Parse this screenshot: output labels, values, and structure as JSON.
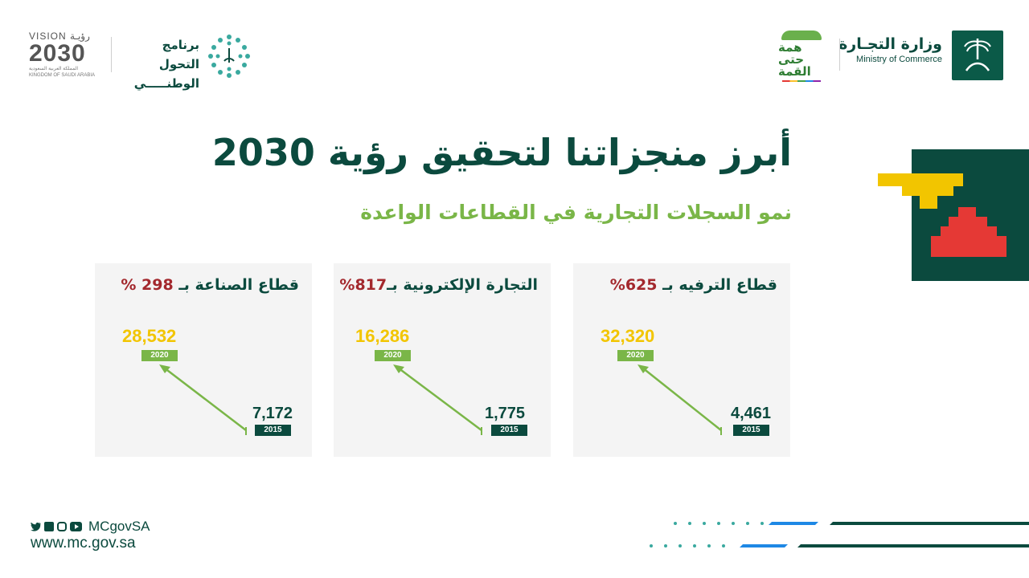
{
  "header": {
    "ministry_ar": "وزارة التجـارة",
    "ministry_en": "Ministry of Commerce",
    "summit_ar": "همة حتى القمة",
    "ntp_line1": "برنامج التحول",
    "ntp_line2": "الوطنـــــي",
    "vision_top": "VISION رؤيـة",
    "vision_year": "2030",
    "vision_sub_ar": "المملكة العربية السعودية",
    "vision_sub_en": "KINGDOM OF SAUDI ARABIA"
  },
  "main": {
    "title": "أبرز منجزاتنا لتحقيق رؤية 2030",
    "subtitle": "نمو السجلات التجارية في القطاعات الواعدة"
  },
  "cards": [
    {
      "label": "قطاع الترفيه بـ",
      "pct": "625%",
      "value_2020": "32,320",
      "year_2020": "2020",
      "value_2015": "4,461",
      "year_2015": "2015"
    },
    {
      "label": "التجارة الإلكترونية بـ",
      "pct": "817%",
      "value_2020": "16,286",
      "year_2020": "2020",
      "value_2015": "1,775",
      "year_2015": "2015"
    },
    {
      "label": "قطاع الصناعة بـ",
      "pct": "298 %",
      "value_2020": "28,532",
      "year_2020": "2020",
      "value_2015": "7,172",
      "year_2015": "2015"
    }
  ],
  "footer": {
    "handle": "MCgovSA",
    "url": "www.mc.gov.sa",
    "icons": [
      "twitter-icon",
      "facebook-icon",
      "instagram-icon",
      "youtube-icon"
    ]
  },
  "colors": {
    "primary": "#0b4a3e",
    "accent_green": "#7ab648",
    "accent_yellow": "#f2c500",
    "accent_red": "#a3282d"
  }
}
